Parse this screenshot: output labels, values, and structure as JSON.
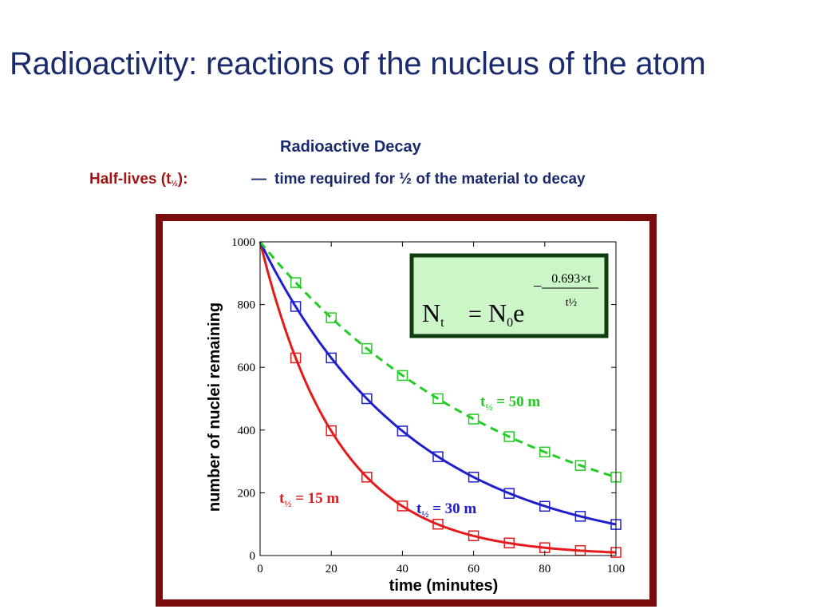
{
  "slide": {
    "title": "Radioactivity: reactions of the nucleus of the atom",
    "subtitle": "Radioactive Decay",
    "halflife_term_prefix": "Half-lives (t",
    "halflife_term_sub": "½",
    "halflife_term_suffix": "):",
    "dash": "—",
    "halflife_definition": "time required for ½ of the material to decay"
  },
  "colors": {
    "title": "#1a2a6c",
    "term": "#a31515",
    "frame": "#7a0c0c",
    "formula_box_fill": "#ccf5c8",
    "formula_box_border": "#0f3d0f"
  },
  "formula": {
    "lhs_symbol": "N",
    "lhs_sub": "t",
    "equals": "=",
    "rhs_symbol": "N",
    "rhs_sub": "0",
    "base": "e",
    "minus": "−",
    "exp_numerator": "0.693×t",
    "exp_denominator": "t½"
  },
  "chart_data": {
    "type": "line",
    "xlabel": "time (minutes)",
    "ylabel": "number of nuclei remaining",
    "xlim": [
      0,
      100
    ],
    "ylim": [
      0,
      1000
    ],
    "x_ticks": [
      0,
      20,
      40,
      60,
      80,
      100
    ],
    "y_ticks": [
      0,
      200,
      400,
      600,
      800,
      1000
    ],
    "grid": false,
    "series": [
      {
        "name": "t½ = 15 m",
        "label_main": "t",
        "label_sub": "½",
        "label_rest": " = 15 m",
        "half_life": 15,
        "color": "#e41a1c",
        "line_style": "solid",
        "marker": "open-square",
        "x": [
          10,
          20,
          30,
          40,
          50,
          60,
          70,
          80,
          90,
          100
        ],
        "y": [
          630,
          398,
          250,
          158,
          100,
          63,
          40,
          25,
          16,
          10
        ]
      },
      {
        "name": "t½ = 30 m",
        "label_main": "t",
        "label_sub": "½",
        "label_rest": " = 30 m",
        "half_life": 30,
        "color": "#1f1fcc",
        "line_style": "solid",
        "marker": "open-square",
        "x": [
          10,
          20,
          30,
          40,
          50,
          60,
          70,
          80,
          90,
          100
        ],
        "y": [
          794,
          630,
          500,
          397,
          315,
          250,
          198,
          157,
          125,
          99
        ]
      },
      {
        "name": "t½ = 50 m",
        "label_main": "t",
        "label_sub": "½",
        "label_rest": " = 50 m",
        "half_life": 50,
        "color": "#22cc22",
        "line_style": "dashed",
        "marker": "open-square",
        "x": [
          10,
          20,
          30,
          40,
          50,
          60,
          70,
          80,
          90,
          100
        ],
        "y": [
          870,
          758,
          660,
          574,
          500,
          435,
          379,
          330,
          287,
          250
        ]
      }
    ]
  }
}
